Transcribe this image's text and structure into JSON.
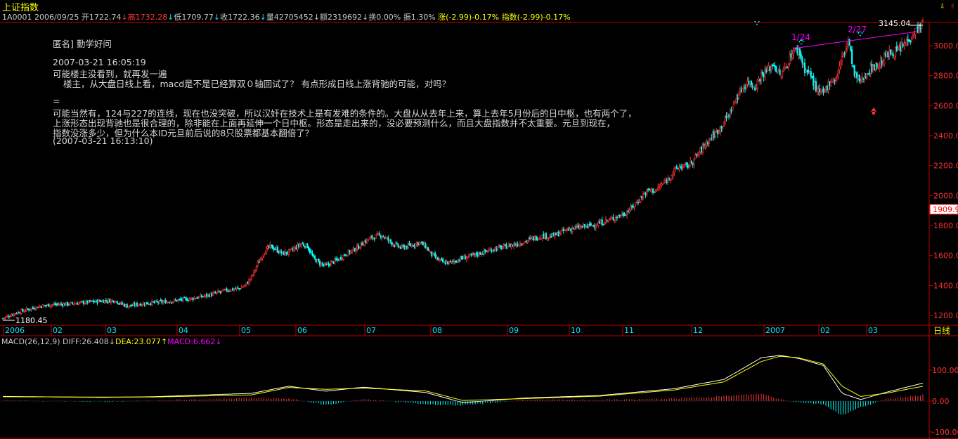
{
  "header": {
    "title": "上证指数",
    "code": "1A0001",
    "date": "2006/09/25",
    "open": "开1722.74",
    "high": "高1732.28",
    "low": "低1709.77",
    "close": "收1722.36",
    "volume": "量42705452",
    "amount": "额2319692",
    "turnover": "换0.00%",
    "amplitude": "振1.30%",
    "change": "涨(-2.99)-0.17%",
    "index_change": "指数(-2.99)-0.17%"
  },
  "annotations": {
    "user": "匿名] 勤学好问",
    "time1": "2007-03-21 16:05:19",
    "line1": "可能楼主没看到，就再发一遍",
    "line2": "楼主，从大盘日线上看，macd是不是已经算双０轴回试了？  有点形成日线上涨背驰的可能，对吗？",
    "eq": "=",
    "line3": "可能当然有，124与227的连线，现在也没突破，所以汉奸在技术上是有发难的条件的。大盘从从去年上来，算上去年5月份后的日中枢，也有两个了，",
    "line4": "上涨形态出现背驰也是很合理的，除非能在上面再延伸一个日中枢。形态是走出来的，没必要预测什么，而且大盘指数并不太重要。元旦到现在，",
    "line5": "指数没涨多少，但为什么本ID元旦前后说的8只股票都基本翻倍了？",
    "time2": "(2007-03-21 16:13:10)"
  },
  "labels": {
    "mark_124": "1/24",
    "mark_227": "2/27",
    "high_value": "3145.04",
    "low_value": "1180.45",
    "current_price": "1909.9",
    "period": "日线"
  },
  "macd": {
    "label": "MACD(26,12,9)",
    "diff": "DIFF:26.408",
    "dea": "DEA:23.077",
    "macd": "MACD:6.662"
  },
  "colors": {
    "up": "#ff3232",
    "down": "#00ffff",
    "axis": "#c00000",
    "diff_line": "#ffffff",
    "dea_line": "#ffff00",
    "trendline": "#ff00ff"
  },
  "chart_data": {
    "type": "candlestick",
    "title": "上证指数",
    "x_ticks": [
      "2006",
      "02",
      "03",
      "04",
      "05",
      "06",
      "07",
      "08",
      "09",
      "10",
      "11",
      "12",
      "2007",
      "02",
      "03"
    ],
    "y_ticks": [
      1200,
      1400,
      1600,
      1800,
      2000,
      2200,
      2400,
      2600,
      2800,
      3000
    ],
    "ylim": [
      1100,
      3200
    ],
    "macd_ticks": [
      100.0,
      0.0,
      -100.0
    ],
    "macd_ylim": [
      -130,
      180
    ],
    "series": [
      {
        "name": "index_close",
        "points": [
          [
            0,
            1180
          ],
          [
            10,
            1215
          ],
          [
            20,
            1240
          ],
          [
            30,
            1262
          ],
          [
            40,
            1272
          ],
          [
            50,
            1275
          ],
          [
            60,
            1282
          ],
          [
            70,
            1290
          ],
          [
            80,
            1297
          ],
          [
            90,
            1300
          ],
          [
            95,
            1278
          ],
          [
            100,
            1262
          ],
          [
            110,
            1275
          ],
          [
            120,
            1285
          ],
          [
            130,
            1290
          ],
          [
            140,
            1300
          ],
          [
            150,
            1310
          ],
          [
            160,
            1325
          ],
          [
            170,
            1345
          ],
          [
            180,
            1368
          ],
          [
            190,
            1380
          ],
          [
            195,
            1400
          ],
          [
            200,
            1455
          ],
          [
            205,
            1545
          ],
          [
            210,
            1622
          ],
          [
            215,
            1660
          ],
          [
            220,
            1640
          ],
          [
            225,
            1612
          ],
          [
            230,
            1622
          ],
          [
            235,
            1648
          ],
          [
            240,
            1678
          ],
          [
            245,
            1662
          ],
          [
            250,
            1580
          ],
          [
            255,
            1548
          ],
          [
            260,
            1530
          ],
          [
            265,
            1555
          ],
          [
            270,
            1575
          ],
          [
            275,
            1605
          ],
          [
            280,
            1628
          ],
          [
            285,
            1650
          ],
          [
            290,
            1685
          ],
          [
            295,
            1712
          ],
          [
            300,
            1728
          ],
          [
            305,
            1734
          ],
          [
            310,
            1702
          ],
          [
            315,
            1672
          ],
          [
            320,
            1652
          ],
          [
            325,
            1660
          ],
          [
            330,
            1672
          ],
          [
            335,
            1688
          ],
          [
            340,
            1660
          ],
          [
            345,
            1605
          ],
          [
            350,
            1572
          ],
          [
            355,
            1552
          ],
          [
            360,
            1552
          ],
          [
            365,
            1568
          ],
          [
            370,
            1584
          ],
          [
            375,
            1592
          ],
          [
            380,
            1605
          ],
          [
            385,
            1618
          ],
          [
            390,
            1630
          ],
          [
            395,
            1645
          ],
          [
            400,
            1652
          ],
          [
            405,
            1660
          ],
          [
            410,
            1670
          ],
          [
            415,
            1680
          ],
          [
            420,
            1693
          ],
          [
            425,
            1710
          ],
          [
            430,
            1722
          ],
          [
            435,
            1732
          ],
          [
            440,
            1725
          ],
          [
            445,
            1738
          ],
          [
            450,
            1760
          ],
          [
            455,
            1775
          ],
          [
            460,
            1782
          ],
          [
            465,
            1790
          ],
          [
            470,
            1795
          ],
          [
            475,
            1802
          ],
          [
            480,
            1815
          ],
          [
            485,
            1830
          ],
          [
            490,
            1845
          ],
          [
            495,
            1862
          ],
          [
            500,
            1880
          ],
          [
            505,
            1912
          ],
          [
            510,
            1955
          ],
          [
            515,
            2005
          ],
          [
            520,
            2038
          ],
          [
            525,
            2030
          ],
          [
            530,
            2072
          ],
          [
            535,
            2110
          ],
          [
            540,
            2165
          ],
          [
            545,
            2195
          ],
          [
            550,
            2192
          ],
          [
            555,
            2230
          ],
          [
            560,
            2285
          ],
          [
            565,
            2345
          ],
          [
            570,
            2392
          ],
          [
            575,
            2430
          ],
          [
            580,
            2490
          ],
          [
            585,
            2560
          ],
          [
            590,
            2650
          ],
          [
            595,
            2720
          ],
          [
            600,
            2760
          ],
          [
            605,
            2725
          ],
          [
            610,
            2805
          ],
          [
            615,
            2835
          ],
          [
            620,
            2880
          ],
          [
            625,
            2795
          ],
          [
            630,
            2860
          ],
          [
            635,
            2960
          ],
          [
            640,
            2970
          ],
          [
            645,
            2845
          ],
          [
            650,
            2800
          ],
          [
            655,
            2690
          ],
          [
            660,
            2680
          ],
          [
            665,
            2760
          ],
          [
            670,
            2780
          ],
          [
            675,
            2915
          ],
          [
            680,
            3040
          ],
          [
            685,
            2800
          ],
          [
            690,
            2760
          ],
          [
            695,
            2820
          ],
          [
            700,
            2860
          ],
          [
            705,
            2870
          ],
          [
            710,
            2932
          ],
          [
            715,
            2955
          ],
          [
            720,
            2965
          ],
          [
            725,
            3008
          ],
          [
            730,
            3060
          ],
          [
            735,
            3110
          ],
          [
            740,
            3145
          ]
        ]
      }
    ],
    "macd_series": [
      {
        "name": "DIFF",
        "points": [
          [
            0,
            15
          ],
          [
            80,
            12
          ],
          [
            120,
            14
          ],
          [
            200,
            25
          ],
          [
            230,
            48
          ],
          [
            260,
            32
          ],
          [
            290,
            45
          ],
          [
            340,
            28
          ],
          [
            370,
            -5
          ],
          [
            420,
            10
          ],
          [
            480,
            18
          ],
          [
            540,
            40
          ],
          [
            580,
            70
          ],
          [
            610,
            140
          ],
          [
            625,
            148
          ],
          [
            640,
            138
          ],
          [
            660,
            115
          ],
          [
            675,
            25
          ],
          [
            690,
            5
          ],
          [
            710,
            28
          ],
          [
            740,
            58
          ]
        ]
      },
      {
        "name": "DEA",
        "points": [
          [
            0,
            14
          ],
          [
            80,
            13
          ],
          [
            120,
            13
          ],
          [
            200,
            20
          ],
          [
            230,
            44
          ],
          [
            260,
            38
          ],
          [
            290,
            42
          ],
          [
            340,
            33
          ],
          [
            370,
            2
          ],
          [
            420,
            8
          ],
          [
            480,
            16
          ],
          [
            540,
            36
          ],
          [
            580,
            62
          ],
          [
            610,
            128
          ],
          [
            625,
            145
          ],
          [
            640,
            140
          ],
          [
            660,
            120
          ],
          [
            675,
            48
          ],
          [
            690,
            15
          ],
          [
            710,
            25
          ],
          [
            740,
            48
          ]
        ]
      }
    ]
  }
}
